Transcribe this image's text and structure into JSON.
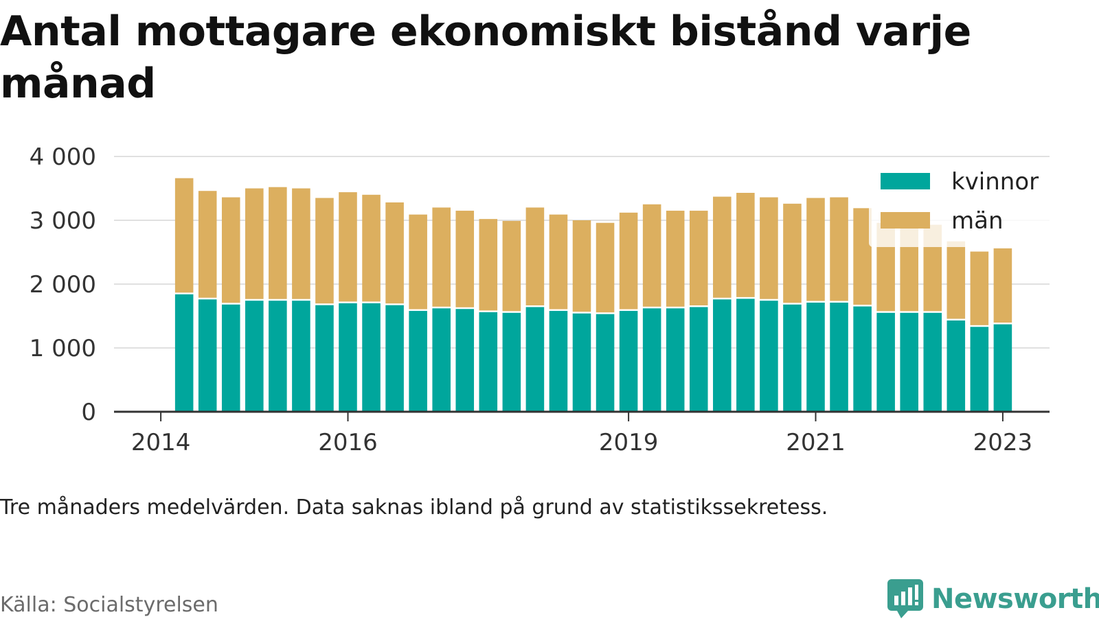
{
  "title": "Antal mottagare ekonomiskt bistånd varje månad",
  "note": "Tre månaders medelvärden. Data saknas ibland på grund av statistikssekretess.",
  "source": "Källa: Socialstyrelsen",
  "brand": {
    "name": "Newsworthy",
    "color": "#3a9e8f",
    "icon": "newsworthy-logo-icon"
  },
  "colors": {
    "kvinnor": "#00a69c",
    "man": "#dcaf5f",
    "grid": "#e0e0e0",
    "axis": "#333333"
  },
  "chart_data": {
    "type": "bar",
    "stacked": true,
    "title": "Antal mottagare ekonomiskt bistånd varje månad",
    "xlabel": "",
    "ylabel": "",
    "ylim": [
      0,
      4000
    ],
    "y_ticks": [
      0,
      1000,
      2000,
      3000,
      4000
    ],
    "y_tick_labels": [
      "0",
      "1 000",
      "2 000",
      "3 000",
      "4 000"
    ],
    "x_ticks": [
      {
        "label": "2014",
        "pos": -1
      },
      {
        "label": "2016",
        "pos": 7
      },
      {
        "label": "2019",
        "pos": 19
      },
      {
        "label": "2021",
        "pos": 27
      },
      {
        "label": "2023",
        "pos": 35
      }
    ],
    "x_range": [
      -3,
      37
    ],
    "grid": true,
    "legend_position": "top-right",
    "categories": [
      "b1",
      "b2",
      "b3",
      "b4",
      "b5",
      "b6",
      "b7",
      "b8",
      "b9",
      "b10",
      "b11",
      "b12",
      "b13",
      "b14",
      "b15",
      "b16",
      "b17",
      "b18",
      "b19",
      "b20",
      "b21",
      "b22",
      "b23",
      "b24",
      "b25",
      "b26",
      "b27",
      "b28",
      "b29",
      "b30",
      "b31",
      "b32",
      "b33",
      "b34",
      "b35",
      "b36"
    ],
    "series": [
      {
        "name": "kvinnor",
        "values": [
          1840,
          1760,
          1680,
          1740,
          1740,
          1740,
          1670,
          1700,
          1700,
          1670,
          1580,
          1620,
          1610,
          1560,
          1550,
          1640,
          1580,
          1540,
          1530,
          1580,
          1620,
          1620,
          1640,
          1760,
          1770,
          1740,
          1680,
          1710,
          1710,
          1650,
          1550,
          1550,
          1550,
          1430,
          1330,
          1370
        ]
      },
      {
        "name": "män",
        "values": [
          1820,
          1700,
          1680,
          1760,
          1780,
          1760,
          1680,
          1740,
          1700,
          1610,
          1510,
          1580,
          1540,
          1460,
          1440,
          1560,
          1510,
          1460,
          1430,
          1540,
          1630,
          1530,
          1510,
          1610,
          1660,
          1620,
          1580,
          1640,
          1650,
          1540,
          1410,
          1410,
          1380,
          1240,
          1180,
          1190
        ]
      }
    ]
  }
}
